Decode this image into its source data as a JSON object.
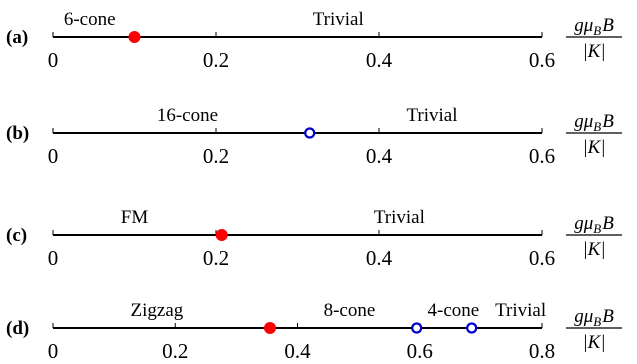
{
  "panels": [
    {
      "label": "(a)",
      "xlim": [
        0,
        0.6
      ],
      "ticks": [
        0,
        0.2,
        0.4,
        0.6
      ],
      "tick_labels": [
        "0",
        "0.2",
        "0.4",
        "0.6"
      ],
      "phases": [
        {
          "name": "6-cone",
          "center": 0.045
        },
        {
          "name": "Trivial",
          "center": 0.35
        }
      ],
      "transitions": [
        {
          "value": 0.1,
          "style": "filled",
          "color": "#ff0000"
        }
      ],
      "unit": {
        "numerator": "gμ",
        "sub": "B",
        "tail": "B",
        "denominator": "|K|"
      }
    },
    {
      "label": "(b)",
      "xlim": [
        0,
        0.6
      ],
      "ticks": [
        0,
        0.2,
        0.4,
        0.6
      ],
      "tick_labels": [
        "0",
        "0.2",
        "0.4",
        "0.6"
      ],
      "phases": [
        {
          "name": "16-cone",
          "center": 0.165
        },
        {
          "name": "Trivial",
          "center": 0.465
        }
      ],
      "transitions": [
        {
          "value": 0.315,
          "style": "open",
          "color": "#0000cc"
        }
      ],
      "unit": {
        "numerator": "gμ",
        "sub": "B",
        "tail": "B",
        "denominator": "|K|"
      }
    },
    {
      "label": "(c)",
      "xlim": [
        0,
        0.6
      ],
      "ticks": [
        0,
        0.2,
        0.4,
        0.6
      ],
      "tick_labels": [
        "0",
        "0.2",
        "0.4",
        "0.6"
      ],
      "phases": [
        {
          "name": "FM",
          "center": 0.1
        },
        {
          "name": "Trivial",
          "center": 0.425
        }
      ],
      "transitions": [
        {
          "value": 0.207,
          "style": "filled",
          "color": "#ff0000"
        }
      ],
      "unit": {
        "numerator": "gμ",
        "sub": "B",
        "tail": "B",
        "denominator": "|K|"
      }
    },
    {
      "label": "(d)",
      "xlim": [
        0,
        0.8
      ],
      "ticks": [
        0,
        0.2,
        0.4,
        0.6,
        0.8
      ],
      "tick_labels": [
        "0",
        "0.2",
        "0.4",
        "0.6",
        "0.8"
      ],
      "phases": [
        {
          "name": "Zigzag",
          "center": 0.17
        },
        {
          "name": "8-cone",
          "center": 0.485
        },
        {
          "name": "4-cone",
          "center": 0.655
        },
        {
          "name": "Trivial",
          "center": 0.765
        }
      ],
      "transitions": [
        {
          "value": 0.355,
          "style": "filled",
          "color": "#ff0000"
        },
        {
          "value": 0.595,
          "style": "open",
          "color": "#0000cc"
        },
        {
          "value": 0.685,
          "style": "open",
          "color": "#0000cc"
        }
      ],
      "unit": {
        "numerator": "gμ",
        "sub": "B",
        "tail": "B",
        "denominator": "|K|"
      }
    }
  ]
}
